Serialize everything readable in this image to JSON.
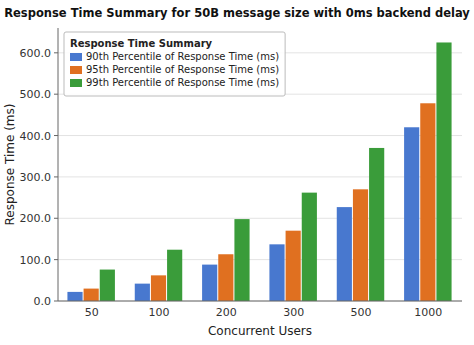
{
  "chart_data": {
    "type": "bar",
    "title": "Response Time Summary for 50B message size with 0ms backend delay",
    "x_label": "Concurrent Users",
    "y_label": "Response Time (ms)",
    "legend_title": "Response Time Summary",
    "categories": [
      "50",
      "100",
      "200",
      "300",
      "500",
      "1000"
    ],
    "series": [
      {
        "name": "90th Percentile of Response Time (ms)",
        "color": "#4878cf",
        "values": [
          22,
          42,
          88,
          137,
          227,
          420
        ]
      },
      {
        "name": "95th Percentile of Response Time (ms)",
        "color": "#e07020",
        "values": [
          30,
          62,
          113,
          170,
          270,
          478
        ]
      },
      {
        "name": "99th Percentile of Response Time (ms)",
        "color": "#3a9c3a",
        "values": [
          76,
          124,
          198,
          262,
          370,
          625
        ]
      }
    ],
    "ylim": [
      0,
      660
    ],
    "yticks": [
      {
        "value": 0,
        "label": "0.0"
      },
      {
        "value": 100,
        "label": "100.0"
      },
      {
        "value": 200,
        "label": "200.0"
      },
      {
        "value": 300,
        "label": "300.0"
      },
      {
        "value": 400,
        "label": "400.0"
      },
      {
        "value": 500,
        "label": "500.0"
      },
      {
        "value": 600,
        "label": "600.0"
      }
    ],
    "grid": true,
    "legend": "upper left"
  }
}
